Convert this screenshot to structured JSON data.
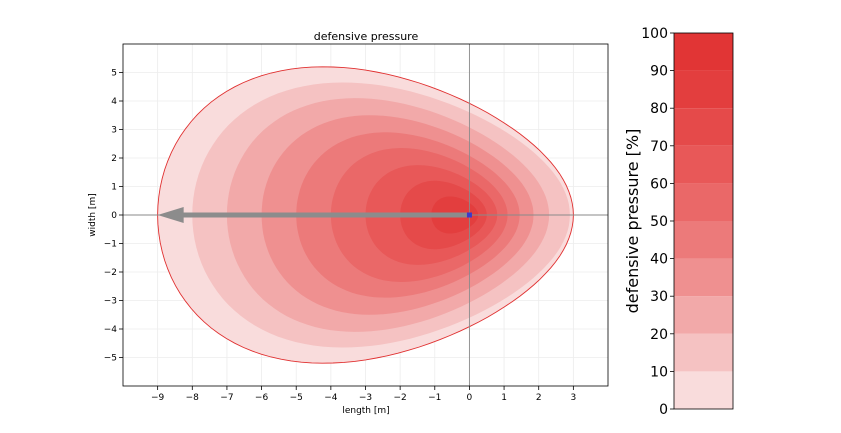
{
  "chart_data": [
    {
      "type": "contour",
      "title": "defensive pressure",
      "xlabel": "length [m]",
      "ylabel": "width [m]",
      "xlim": [
        -10.0,
        4.0
      ],
      "ylim": [
        -6.0,
        6.0
      ],
      "xticks": [
        -9,
        -8,
        -7,
        -6,
        -5,
        -4,
        -3,
        -2,
        -1,
        0,
        1,
        2,
        3
      ],
      "yticks": [
        -5,
        -4,
        -3,
        -2,
        -1,
        0,
        1,
        2,
        3,
        4,
        5
      ],
      "grid": true,
      "reference_lines": {
        "x": 0,
        "y": 0
      },
      "player_position": {
        "x": 0,
        "y": 0,
        "color": "#3a3acc"
      },
      "movement_arrow": {
        "from": [
          0,
          0
        ],
        "to": [
          -9,
          0
        ],
        "color": "#8c8c8c"
      },
      "levels": [
        {
          "pressure": 5,
          "x_min": -9.0,
          "x_max": 3.0,
          "half_width": 5.2,
          "color": "#f9dcdc"
        },
        {
          "pressure": 15,
          "x_min": -8.0,
          "x_max": 2.9,
          "half_width": 4.65,
          "color": "#f5c2c2"
        },
        {
          "pressure": 25,
          "x_min": -7.0,
          "x_max": 2.3,
          "half_width": 4.1,
          "color": "#f2a9a9"
        },
        {
          "pressure": 35,
          "x_min": -6.0,
          "x_max": 1.85,
          "half_width": 3.5,
          "color": "#ef9090"
        },
        {
          "pressure": 45,
          "x_min": -5.0,
          "x_max": 1.45,
          "half_width": 2.9,
          "color": "#ec7a7a"
        },
        {
          "pressure": 55,
          "x_min": -4.0,
          "x_max": 1.1,
          "half_width": 2.35,
          "color": "#ea6868"
        },
        {
          "pressure": 65,
          "x_min": -3.0,
          "x_max": 0.8,
          "half_width": 1.75,
          "color": "#e85858"
        },
        {
          "pressure": 75,
          "x_min": -2.0,
          "x_max": 0.5,
          "half_width": 1.2,
          "color": "#e54a4a"
        },
        {
          "pressure": 85,
          "x_min": -1.1,
          "x_max": 0.25,
          "half_width": 0.65,
          "color": "#e33e3e"
        }
      ],
      "outline_color": "#e03030"
    },
    {
      "type": "colorbar",
      "label": "defensive pressure [%]",
      "range": [
        0,
        100
      ],
      "ticks": [
        0,
        10,
        20,
        30,
        40,
        50,
        60,
        70,
        80,
        90,
        100
      ],
      "bands": [
        {
          "from": 0,
          "to": 10,
          "color": "#f9dcdc"
        },
        {
          "from": 10,
          "to": 20,
          "color": "#f5c2c2"
        },
        {
          "from": 20,
          "to": 30,
          "color": "#f2a9a9"
        },
        {
          "from": 30,
          "to": 40,
          "color": "#ef9090"
        },
        {
          "from": 40,
          "to": 50,
          "color": "#ec7a7a"
        },
        {
          "from": 50,
          "to": 60,
          "color": "#ea6868"
        },
        {
          "from": 60,
          "to": 70,
          "color": "#e85858"
        },
        {
          "from": 70,
          "to": 80,
          "color": "#e54a4a"
        },
        {
          "from": 80,
          "to": 90,
          "color": "#e33e3e"
        },
        {
          "from": 90,
          "to": 100,
          "color": "#e13535"
        }
      ]
    }
  ]
}
